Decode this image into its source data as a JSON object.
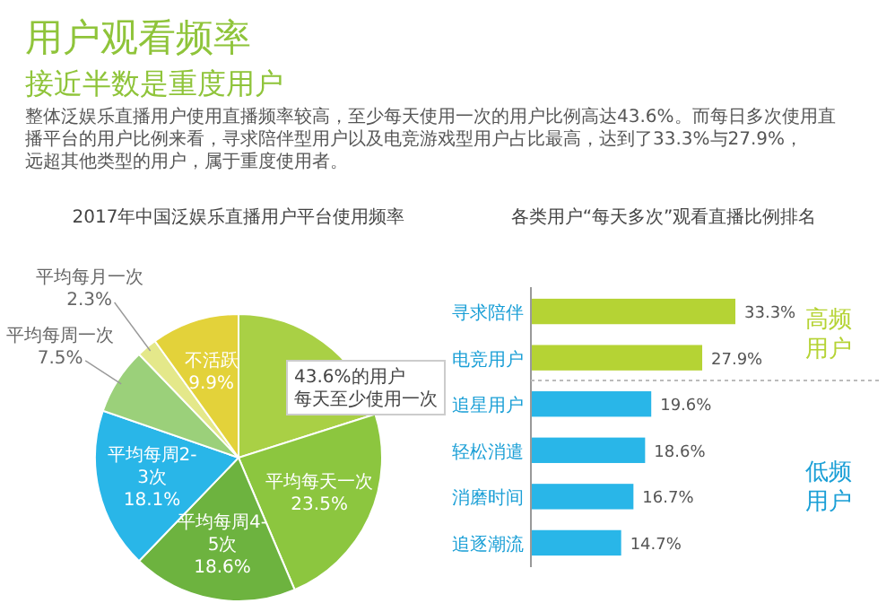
{
  "chart_data": [
    {
      "type": "other",
      "title": "用户观看频率",
      "subtitle": "接近半数是重度用户",
      "annotations": [
        "整体泛娱乐直播用户使用直播频率较高，至少每天使用一次的用户比例高达43.6%。而每日多次使用直播平台的用户比例来看，寻求陪伴型用户以及电竞游戏型用户占比最高，达到了33.3%与27.9%，远超其他类型的用户，属于重度使用者。"
      ]
    },
    {
      "type": "pie",
      "title": "2017年中国泛娱乐直播用户平台使用频率",
      "categories": [
        null,
        "平均每天一次",
        "平均每周4-5次",
        "平均每周2-3次",
        "平均每周一次",
        "平均每月一次",
        "不活跃"
      ],
      "values": [
        20.1,
        23.5,
        18.6,
        18.1,
        7.5,
        2.3,
        9.9
      ],
      "value_labels": [
        null,
        "23.5%",
        "18.6%",
        "18.1%",
        "7.5%",
        "2.3%",
        "9.9%"
      ],
      "colors": [
        "#a9d045",
        "#8cc63f",
        "#6db33f",
        "#29b6e8",
        "#9bd07a",
        "#e4e88a",
        "#e3d23a"
      ],
      "annotations": [
        "43.6%的用户每天至少使用一次"
      ]
    },
    {
      "type": "bar",
      "orientation": "horizontal",
      "title": "各类用户“每天多次”观看直播比例排名",
      "categories": [
        "寻求陪伴",
        "电竞用户",
        "追星用户",
        "轻松消遣",
        "消磨时间",
        "追逐潮流"
      ],
      "values": [
        33.3,
        27.9,
        19.6,
        18.6,
        16.7,
        14.7
      ],
      "value_labels": [
        "33.3%",
        "27.9%",
        "19.6%",
        "18.6%",
        "16.7%",
        "14.7%"
      ],
      "colors": [
        "#b5d334",
        "#b5d334",
        "#29b6e8",
        "#29b6e8",
        "#29b6e8",
        "#29b6e8"
      ],
      "annotations": [
        "高频用户",
        "低频用户"
      ]
    }
  ]
}
